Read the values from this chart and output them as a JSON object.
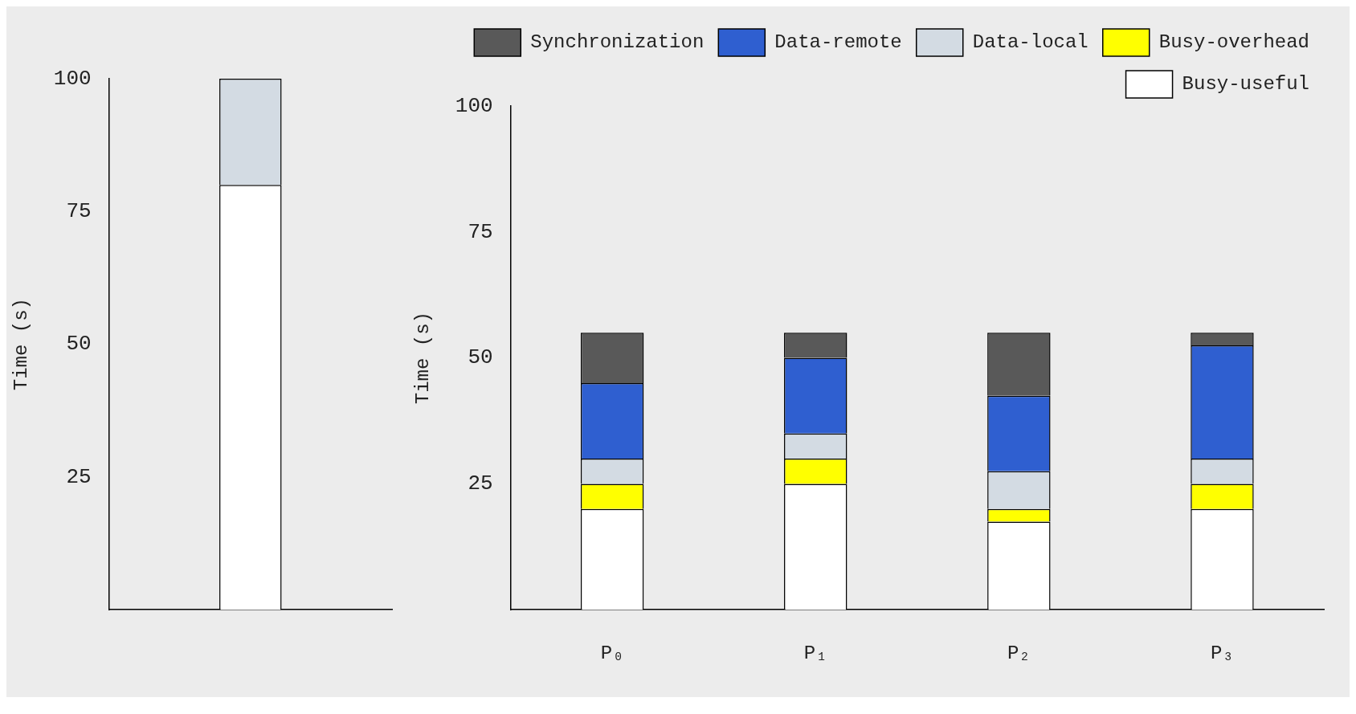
{
  "chart_data": [
    {
      "type": "bar",
      "stacked": true,
      "ylabel": "Time (s)",
      "categories": [
        null
      ],
      "ylim": [
        0,
        100
      ],
      "yticks": [
        {
          "value": 0,
          "label": null
        },
        25,
        50,
        75,
        100
      ],
      "grid": false,
      "legend": false,
      "series": [
        {
          "color": "#ffffff",
          "values": [
            80
          ]
        },
        {
          "color": "#d3dbe3",
          "values": [
            20
          ]
        }
      ]
    },
    {
      "type": "bar",
      "stacked": true,
      "ylabel": "Time (s)",
      "categories": [
        "P₀",
        "P₁",
        "P₂",
        "P₃"
      ],
      "ylim": [
        0,
        100
      ],
      "yticks": [
        {
          "value": 0,
          "label": null
        },
        25,
        50,
        75,
        100
      ],
      "grid": false,
      "legend": "top right",
      "series": [
        {
          "name": "Busy-useful",
          "color": "#ffffff",
          "values": [
            20,
            25,
            17.5,
            20
          ]
        },
        {
          "name": "Busy-overhead",
          "color": "#ffff00",
          "values": [
            5,
            5,
            2.5,
            5
          ]
        },
        {
          "name": "Data-local",
          "color": "#d3dbe3",
          "values": [
            5,
            5,
            7.5,
            5
          ]
        },
        {
          "name": "Data-remote",
          "color": "#2f5fd0",
          "values": [
            15,
            15,
            15,
            22.5
          ]
        },
        {
          "name": "Synchronization",
          "color": "#595959",
          "values": [
            10,
            5,
            12.5,
            2.5
          ]
        }
      ]
    }
  ]
}
